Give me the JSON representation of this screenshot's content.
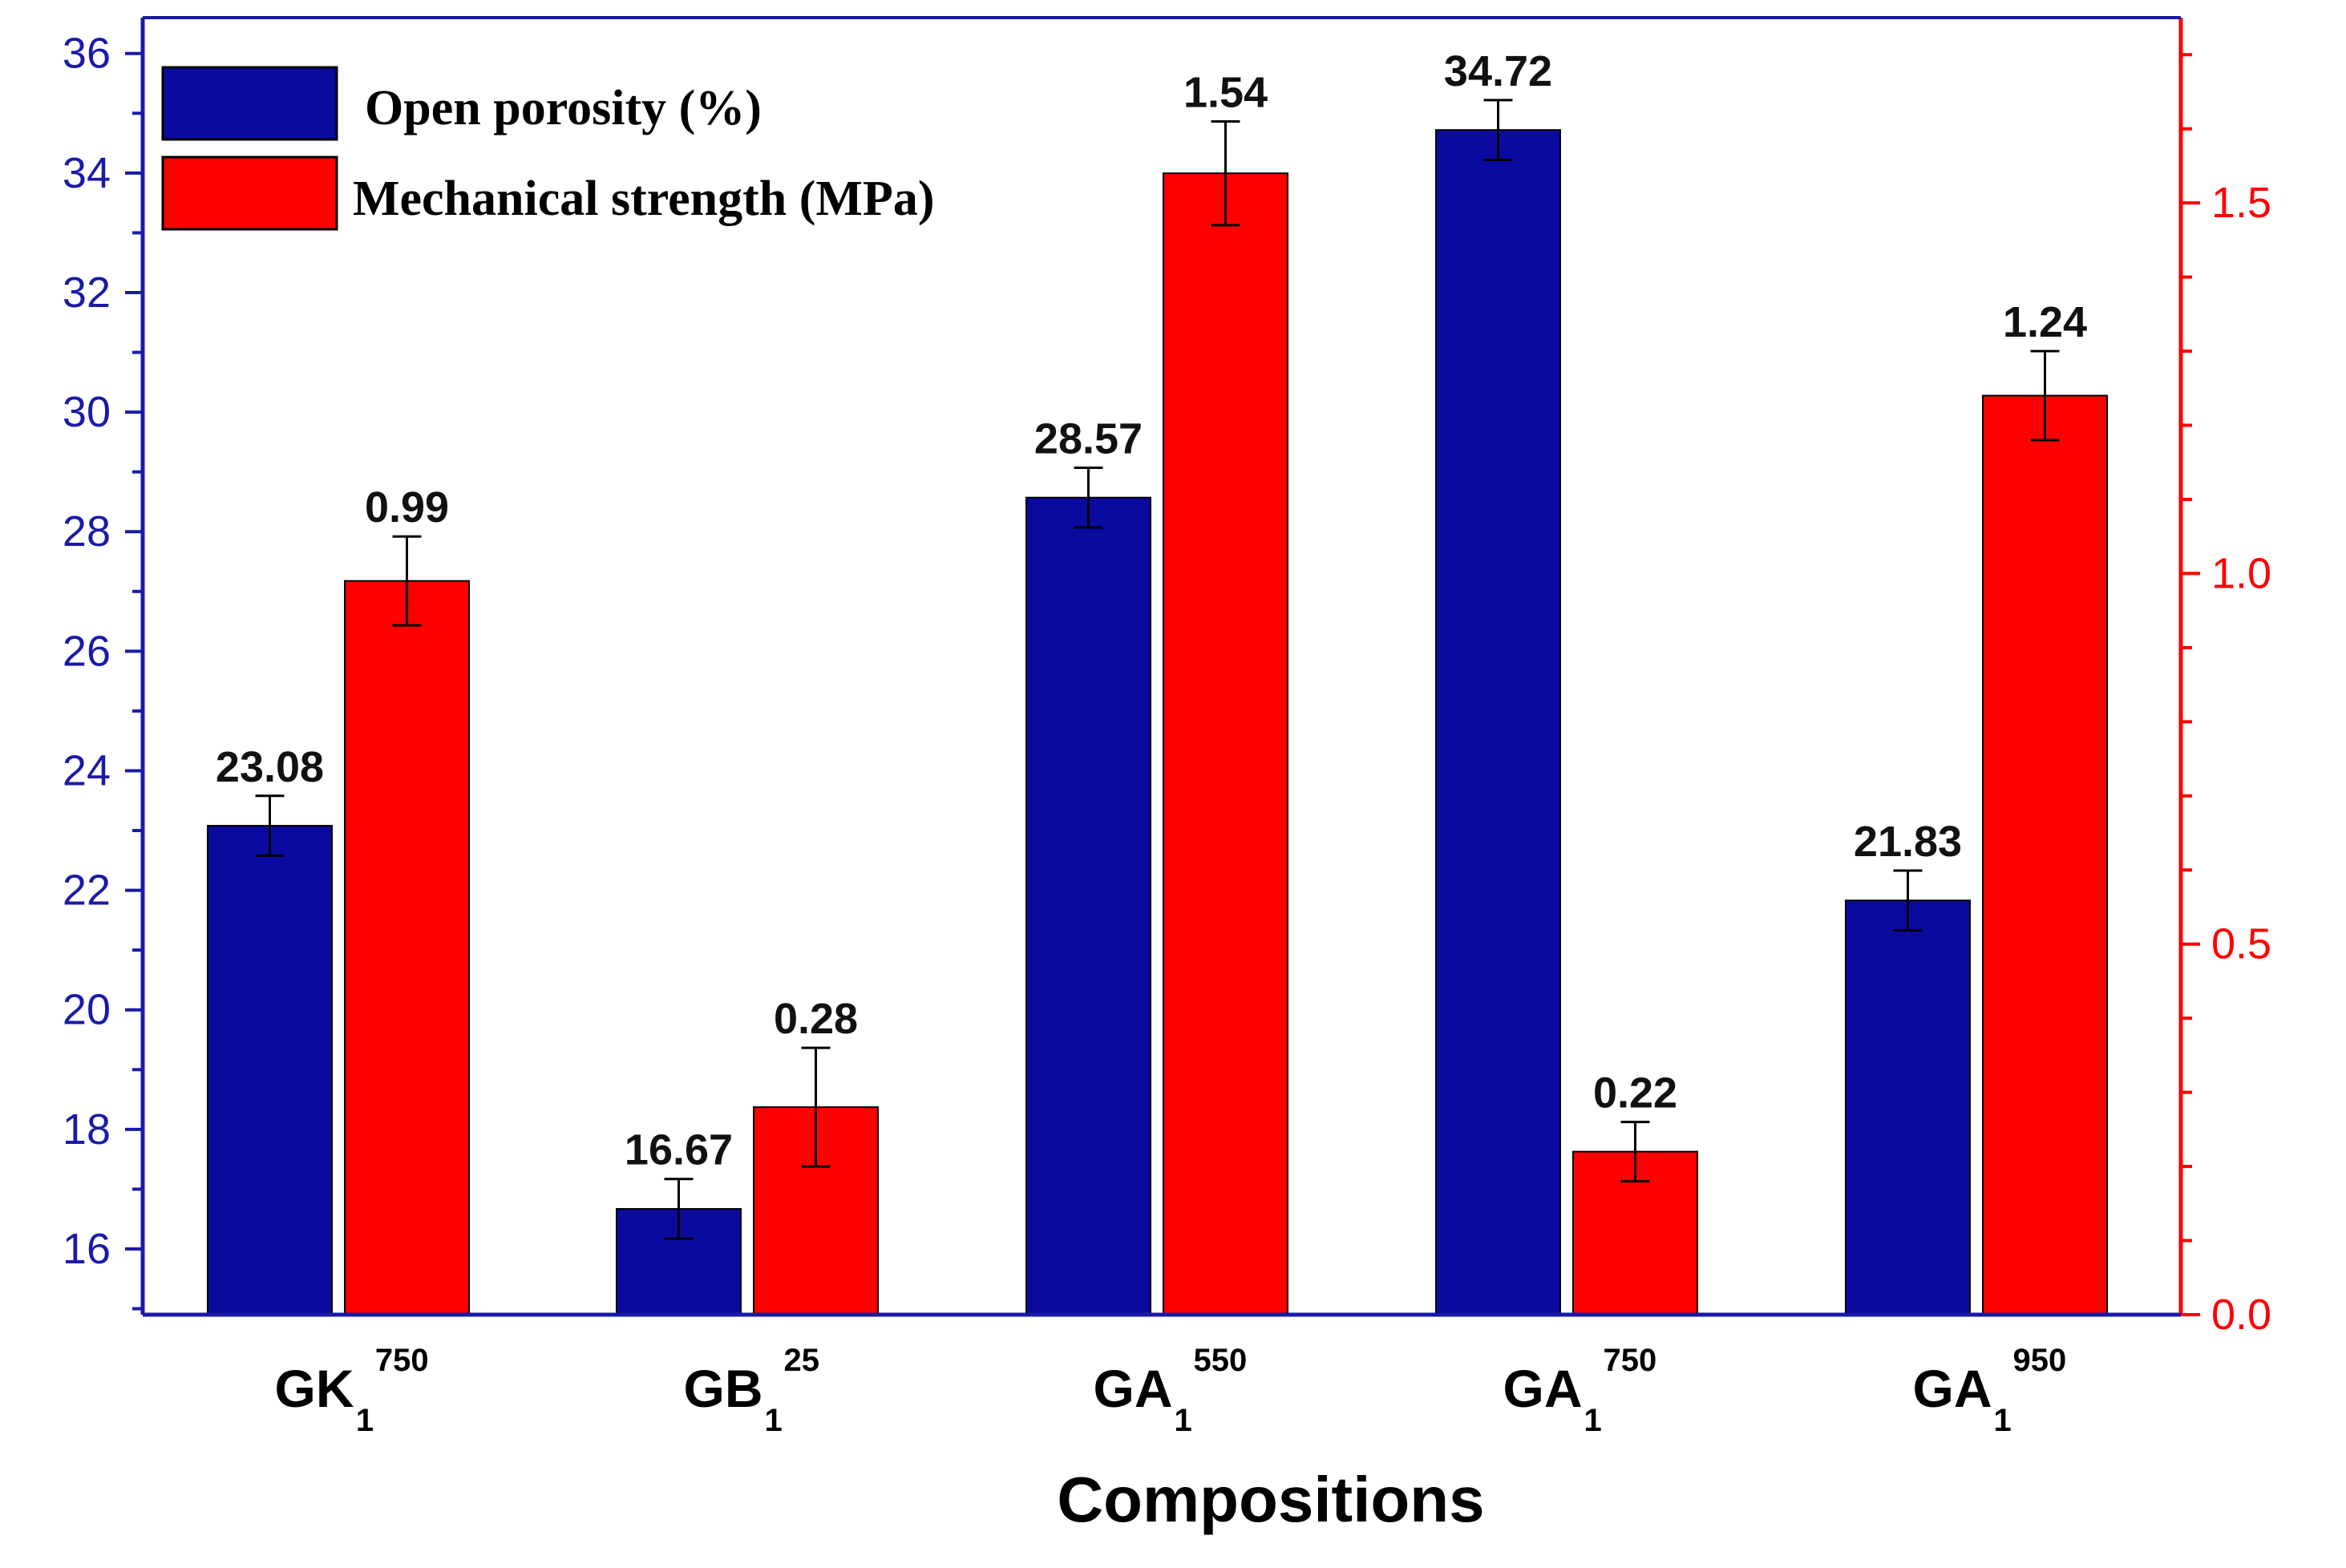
{
  "chart_data": {
    "type": "bar",
    "title": "",
    "xlabel": "Compositions",
    "categories": [
      {
        "base": "GK",
        "sub": "1",
        "sup": "750"
      },
      {
        "base": "GB",
        "sub": "1",
        "sup": "25"
      },
      {
        "base": "GA",
        "sub": "1",
        "sup": "550"
      },
      {
        "base": "GA",
        "sub": "1",
        "sup": "750"
      },
      {
        "base": "GA",
        "sub": "1",
        "sup": "950"
      }
    ],
    "series": [
      {
        "name": "Open porosity (%)",
        "axis": "left",
        "color": "#0a0a9e",
        "values": [
          23.08,
          16.67,
          28.57,
          34.72,
          21.83
        ],
        "labels": [
          "23.08",
          "16.67",
          "28.57",
          "34.72",
          "21.83"
        ],
        "errors": [
          0.5,
          0.5,
          0.5,
          0.5,
          0.5
        ]
      },
      {
        "name": "Mechanical strength (MPa)",
        "axis": "right",
        "color": "#ff0000",
        "values": [
          0.99,
          0.28,
          1.54,
          0.22,
          1.24
        ],
        "labels": [
          "0.99",
          "0.28",
          "1.54",
          "0.22",
          "1.24"
        ],
        "errors": [
          0.06,
          0.08,
          0.07,
          0.04,
          0.06
        ]
      }
    ],
    "y_left": {
      "ylim": [
        14.9,
        36.6
      ],
      "ticks": [
        16,
        18,
        20,
        22,
        24,
        26,
        28,
        30,
        32,
        34,
        36
      ],
      "tick_labels": [
        "16",
        "18",
        "20",
        "22",
        "24",
        "26",
        "28",
        "30",
        "32",
        "34",
        "36"
      ],
      "color": "#1a1aa8"
    },
    "y_right": {
      "ylim": [
        0,
        1.75
      ],
      "ticks": [
        0.0,
        0.5,
        1.0,
        1.5
      ],
      "tick_labels": [
        "0.0",
        "0.5",
        "1.0",
        "1.5"
      ],
      "color": "#ff0000"
    },
    "legend": "top-left"
  }
}
